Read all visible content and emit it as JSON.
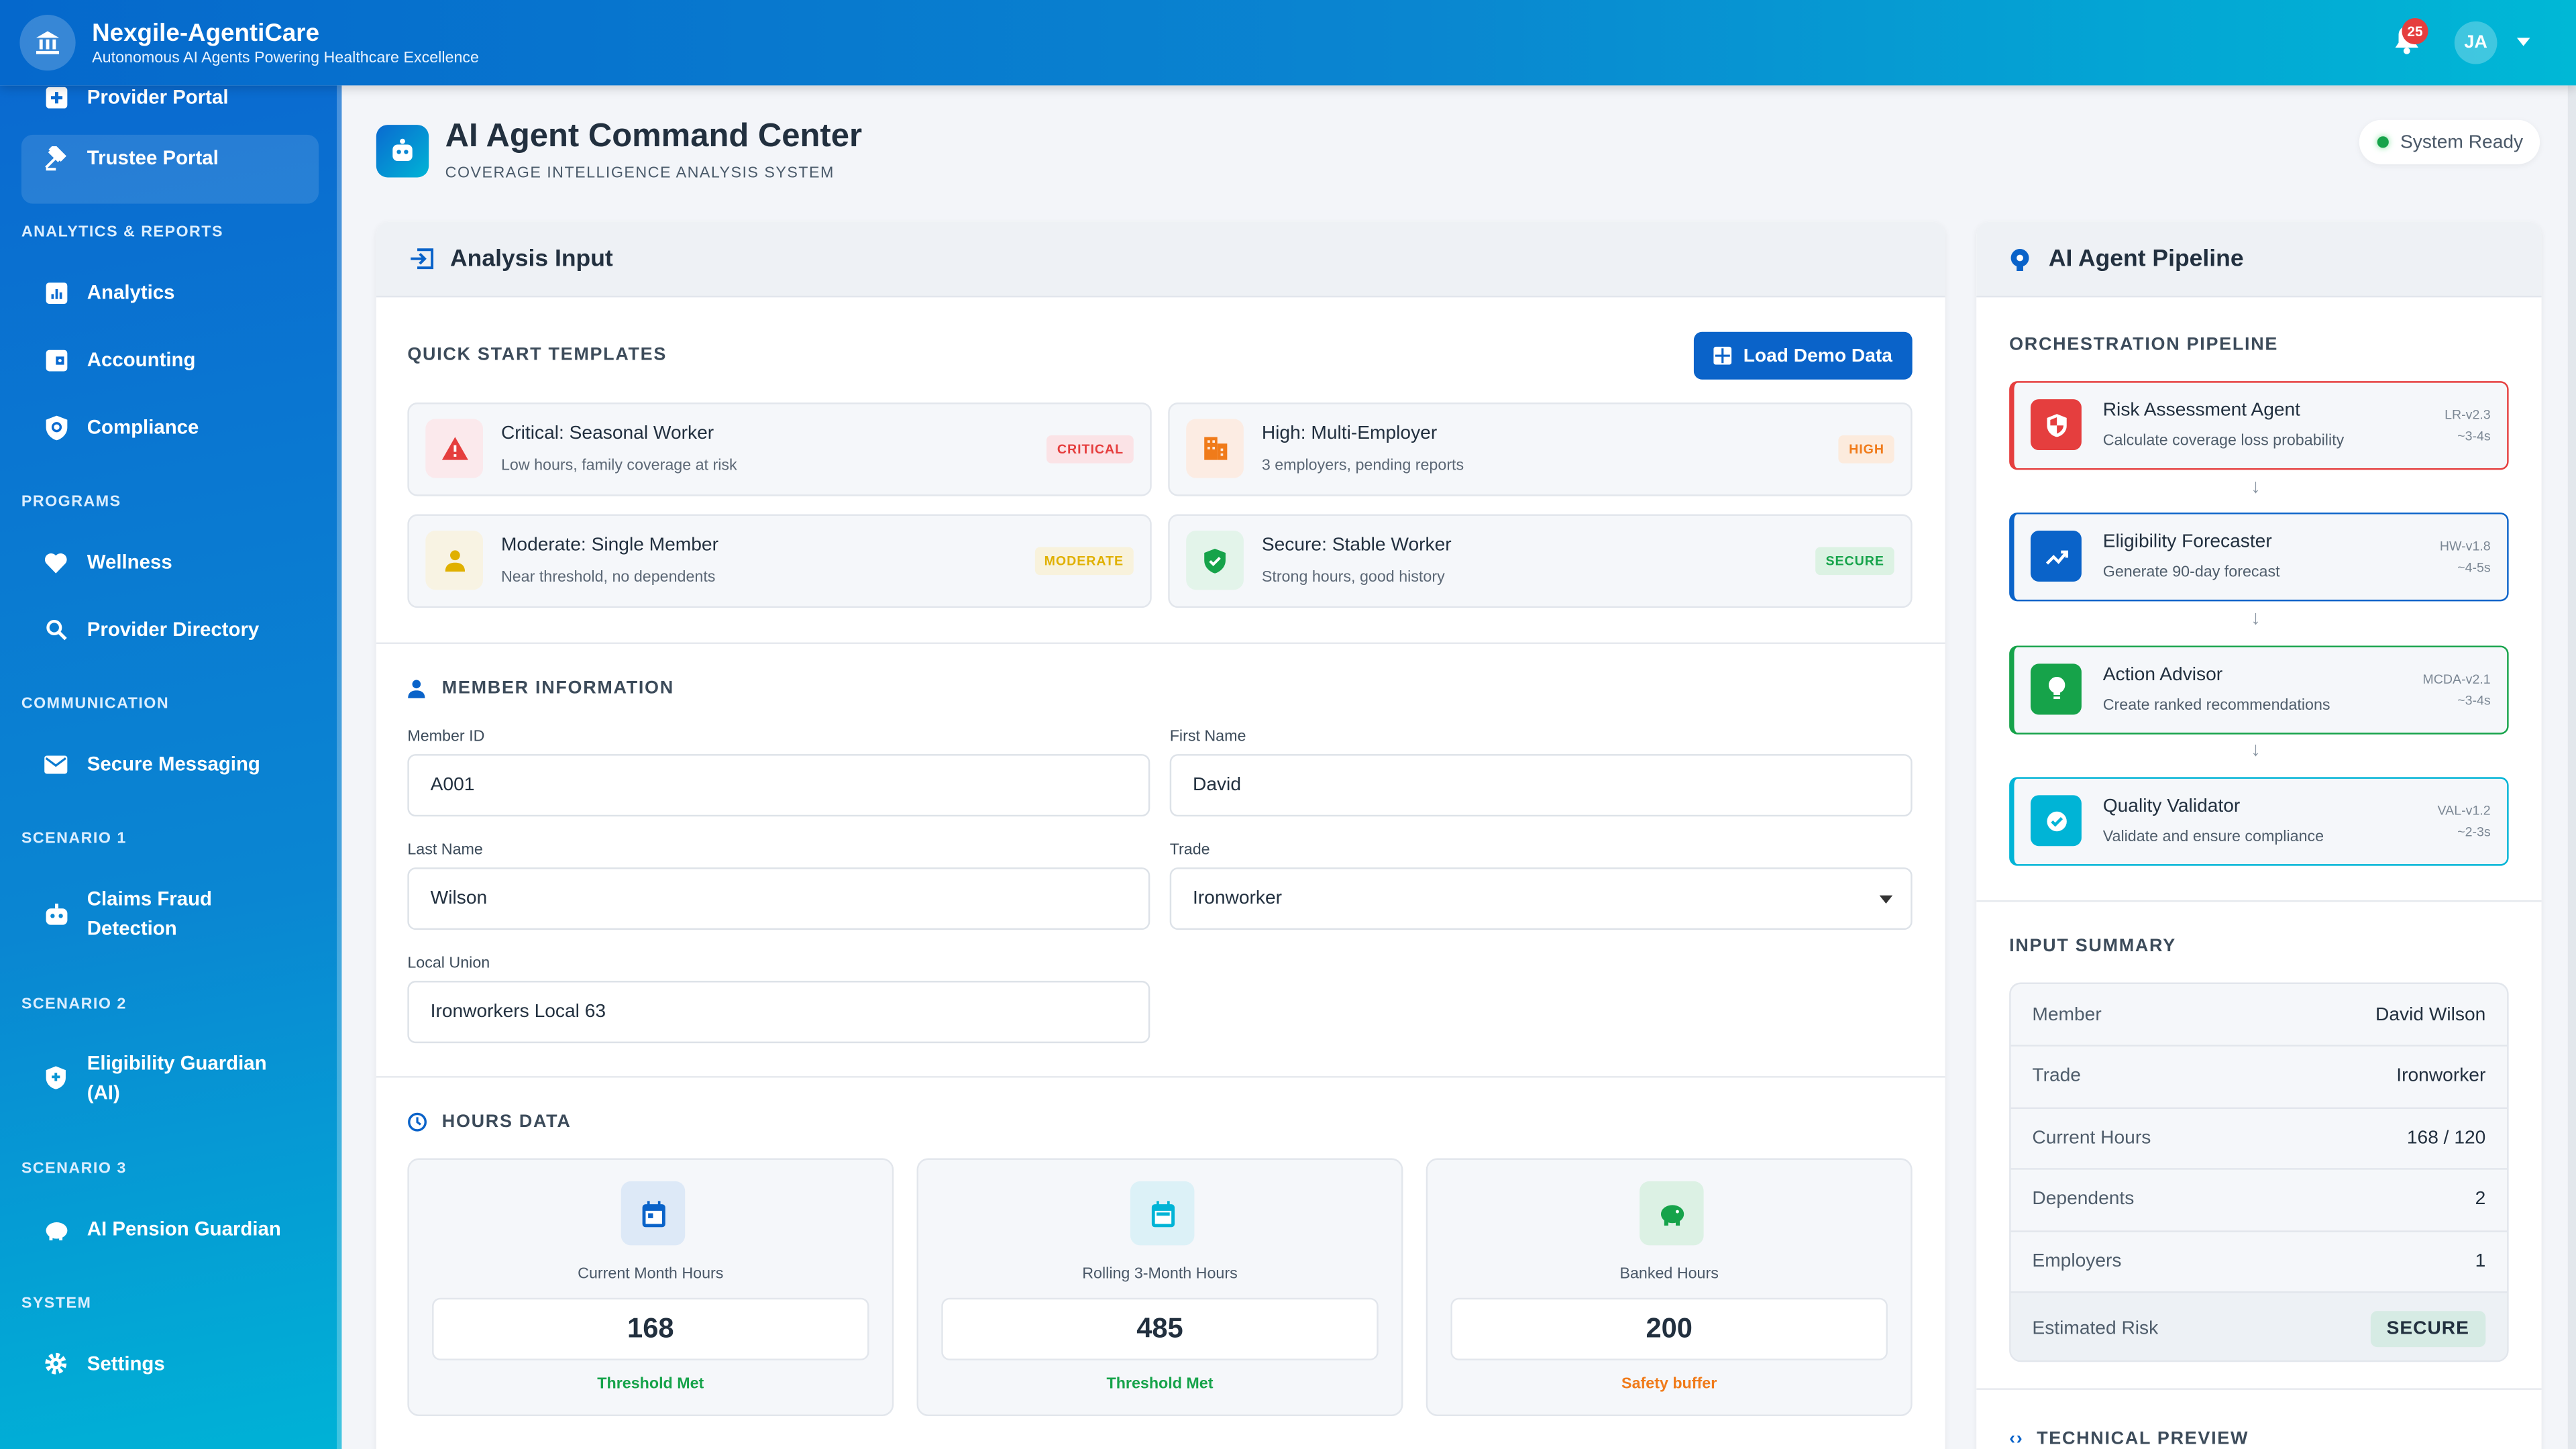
{
  "header": {
    "app_title": "Nexgile-AgentiCare",
    "app_subtitle": "Autonomous AI Agents Powering Healthcare Excellence",
    "notification_count": "25",
    "avatar_initials": "JA"
  },
  "sidebar": {
    "items": [
      {
        "label": "Provider Portal",
        "icon": "hospital-icon"
      },
      {
        "label": "Trustee Portal",
        "icon": "gavel-icon"
      },
      {
        "label": "Analytics",
        "icon": "chart-icon"
      },
      {
        "label": "Accounting",
        "icon": "wallet-icon"
      },
      {
        "label": "Compliance",
        "icon": "shield-search-icon"
      },
      {
        "label": "Wellness",
        "icon": "heart-icon"
      },
      {
        "label": "Provider Directory",
        "icon": "search-icon"
      },
      {
        "label": "Secure Messaging",
        "icon": "envelope-icon"
      },
      {
        "label": "Claims Fraud Detection",
        "icon": "robot-icon"
      },
      {
        "label": "Eligibility Guardian (AI)",
        "icon": "shield-icon"
      },
      {
        "label": "AI Pension Guardian",
        "icon": "piggy-bank-icon"
      },
      {
        "label": "Settings",
        "icon": "gear-icon"
      }
    ],
    "sections": [
      "ANALYTICS & REPORTS",
      "PROGRAMS",
      "COMMUNICATION",
      "SCENARIO 1",
      "SCENARIO 2",
      "SCENARIO 3",
      "SYSTEM"
    ]
  },
  "page": {
    "title": "AI Agent Command Center",
    "subtitle": "COVERAGE INTELLIGENCE ANALYSIS SYSTEM",
    "status": "System Ready"
  },
  "analysis": {
    "title": "Analysis Input",
    "templates_label": "QUICK START TEMPLATES",
    "load_demo": "Load Demo Data",
    "templates": [
      {
        "title": "Critical: Seasonal Worker",
        "desc": "Low hours, family coverage at risk",
        "badge": "CRITICAL",
        "color": "#e53e3e"
      },
      {
        "title": "High: Multi-Employer",
        "desc": "3 employers, pending reports",
        "badge": "HIGH",
        "color": "#f07b1a"
      },
      {
        "title": "Moderate: Single Member",
        "desc": "Near threshold, no dependents",
        "badge": "MODERATE",
        "color": "#e0b000"
      },
      {
        "title": "Secure: Stable Worker",
        "desc": "Strong hours, good history",
        "badge": "SECURE",
        "color": "#16a34a"
      }
    ],
    "member_label": "MEMBER INFORMATION",
    "fields": {
      "member_id": {
        "label": "Member ID",
        "value": "A001"
      },
      "first_name": {
        "label": "First Name",
        "value": "David"
      },
      "last_name": {
        "label": "Last Name",
        "value": "Wilson"
      },
      "trade": {
        "label": "Trade",
        "value": "Ironworker"
      },
      "local_union": {
        "label": "Local Union",
        "value": "Ironworkers Local 63"
      }
    },
    "hours_label": "HOURS DATA",
    "hours": [
      {
        "label": "Current Month Hours",
        "value": "168",
        "status": "Threshold Met",
        "status_color": "#16a34a"
      },
      {
        "label": "Rolling 3-Month Hours",
        "value": "485",
        "status": "Threshold Met",
        "status_color": "#16a34a"
      },
      {
        "label": "Banked Hours",
        "value": "200",
        "status": "Safety buffer",
        "status_color": "#f07b1a"
      }
    ]
  },
  "pipeline": {
    "title": "AI Agent Pipeline",
    "orchestration_label": "ORCHESTRATION PIPELINE",
    "agents": [
      {
        "name": "Risk Assessment Agent",
        "desc": "Calculate coverage loss probability",
        "version": "LR-v2.3",
        "time": "~3-4s",
        "color": "#e53e3e"
      },
      {
        "name": "Eligibility Forecaster",
        "desc": "Generate 90-day forecast",
        "version": "HW-v1.8",
        "time": "~4-5s",
        "color": "#0a63c9"
      },
      {
        "name": "Action Advisor",
        "desc": "Create ranked recommendations",
        "version": "MCDA-v2.1",
        "time": "~3-4s",
        "color": "#16a34a"
      },
      {
        "name": "Quality Validator",
        "desc": "Validate and ensure compliance",
        "version": "VAL-v1.2",
        "time": "~2-3s",
        "color": "#00b4d6"
      }
    ],
    "summary_label": "INPUT SUMMARY",
    "summary": [
      {
        "key": "Member",
        "value": "David Wilson"
      },
      {
        "key": "Trade",
        "value": "Ironworker"
      },
      {
        "key": "Current Hours",
        "value": "168 / 120"
      },
      {
        "key": "Dependents",
        "value": "2"
      },
      {
        "key": "Employers",
        "value": "1"
      },
      {
        "key": "Estimated Risk",
        "value": "SECURE"
      }
    ],
    "technical_label": "TECHNICAL PREVIEW"
  }
}
